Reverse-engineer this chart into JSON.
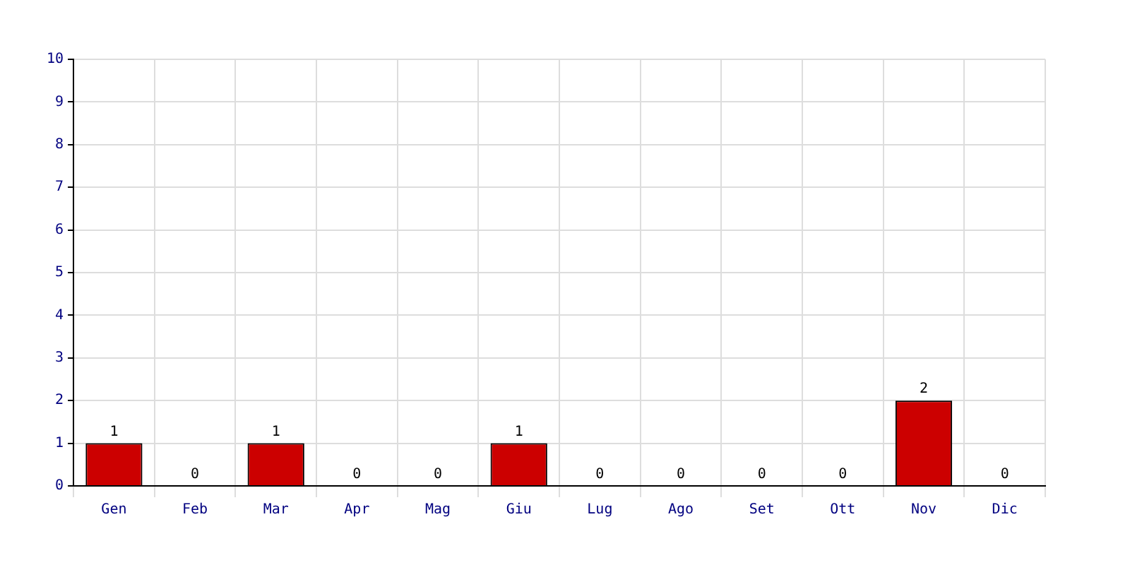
{
  "chart_data": {
    "type": "bar",
    "categories": [
      "Gen",
      "Feb",
      "Mar",
      "Apr",
      "Mag",
      "Giu",
      "Lug",
      "Ago",
      "Set",
      "Ott",
      "Nov",
      "Dic"
    ],
    "values": [
      1,
      0,
      1,
      0,
      0,
      1,
      0,
      0,
      0,
      0,
      2,
      0
    ],
    "color": "#cc0000",
    "ylim": [
      0,
      10
    ],
    "yticks": [
      0,
      1,
      2,
      3,
      4,
      5,
      6,
      7,
      8,
      9,
      10
    ],
    "grid": true,
    "legend": false,
    "data_labels": true
  }
}
